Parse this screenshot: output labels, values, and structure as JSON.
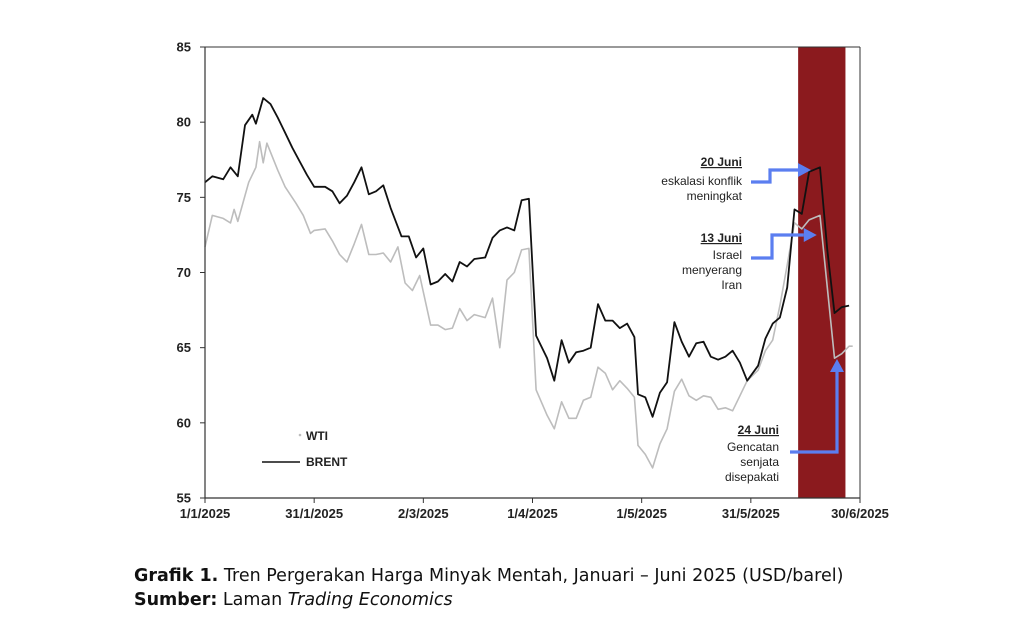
{
  "chart_data": {
    "type": "line",
    "ylim": [
      55,
      85
    ],
    "yticks": [
      55,
      60,
      65,
      70,
      75,
      80,
      85
    ],
    "x_tick_labels": [
      "1/1/2025",
      "31/1/2025",
      "2/3/2025",
      "1/4/2025",
      "1/5/2025",
      "31/5/2025",
      "30/6/2025"
    ],
    "x_range": [
      "2025-01-01",
      "2025-06-30"
    ],
    "grid": false,
    "legend_position": "bottom-left",
    "shaded_period": {
      "start": "2025-06-13",
      "end": "2025-06-26",
      "color": "#8b1a1e"
    },
    "series": [
      {
        "name": "WTI",
        "color": "#bdbdbd",
        "points": [
          [
            "2025-01-01",
            71.7
          ],
          [
            "2025-01-03",
            73.8
          ],
          [
            "2025-01-06",
            73.6
          ],
          [
            "2025-01-08",
            73.3
          ],
          [
            "2025-01-09",
            74.2
          ],
          [
            "2025-01-10",
            73.4
          ],
          [
            "2025-01-13",
            76.0
          ],
          [
            "2025-01-15",
            77.0
          ],
          [
            "2025-01-16",
            78.7
          ],
          [
            "2025-01-17",
            77.3
          ],
          [
            "2025-01-18",
            78.6
          ],
          [
            "2025-01-21",
            76.8
          ],
          [
            "2025-01-23",
            75.7
          ],
          [
            "2025-01-26",
            74.6
          ],
          [
            "2025-01-28",
            73.8
          ],
          [
            "2025-01-30",
            72.6
          ],
          [
            "2025-01-31",
            72.8
          ],
          [
            "2025-02-03",
            72.9
          ],
          [
            "2025-02-05",
            72.1
          ],
          [
            "2025-02-07",
            71.2
          ],
          [
            "2025-02-09",
            70.7
          ],
          [
            "2025-02-11",
            71.9
          ],
          [
            "2025-02-13",
            73.2
          ],
          [
            "2025-02-15",
            71.2
          ],
          [
            "2025-02-17",
            71.2
          ],
          [
            "2025-02-19",
            71.3
          ],
          [
            "2025-02-21",
            70.7
          ],
          [
            "2025-02-23",
            71.7
          ],
          [
            "2025-02-25",
            69.3
          ],
          [
            "2025-02-27",
            68.8
          ],
          [
            "2025-03-01",
            69.8
          ],
          [
            "2025-03-04",
            66.5
          ],
          [
            "2025-03-06",
            66.5
          ],
          [
            "2025-03-08",
            66.2
          ],
          [
            "2025-03-10",
            66.3
          ],
          [
            "2025-03-12",
            67.6
          ],
          [
            "2025-03-14",
            66.8
          ],
          [
            "2025-03-16",
            67.2
          ],
          [
            "2025-03-19",
            67.0
          ],
          [
            "2025-03-21",
            68.3
          ],
          [
            "2025-03-23",
            65.0
          ],
          [
            "2025-03-25",
            69.5
          ],
          [
            "2025-03-27",
            70.0
          ],
          [
            "2025-03-29",
            71.5
          ],
          [
            "2025-03-31",
            71.6
          ],
          [
            "2025-04-02",
            62.2
          ],
          [
            "2025-04-05",
            60.5
          ],
          [
            "2025-04-07",
            59.6
          ],
          [
            "2025-04-09",
            61.4
          ],
          [
            "2025-04-11",
            60.3
          ],
          [
            "2025-04-13",
            60.3
          ],
          [
            "2025-04-15",
            61.5
          ],
          [
            "2025-04-17",
            61.7
          ],
          [
            "2025-04-19",
            63.7
          ],
          [
            "2025-04-21",
            63.3
          ],
          [
            "2025-04-23",
            62.2
          ],
          [
            "2025-04-25",
            62.8
          ],
          [
            "2025-04-27",
            62.3
          ],
          [
            "2025-04-29",
            61.7
          ],
          [
            "2025-04-30",
            58.5
          ],
          [
            "2025-05-02",
            57.9
          ],
          [
            "2025-05-04",
            57.0
          ],
          [
            "2025-05-06",
            58.6
          ],
          [
            "2025-05-08",
            59.6
          ],
          [
            "2025-05-10",
            62.1
          ],
          [
            "2025-05-12",
            62.9
          ],
          [
            "2025-05-14",
            61.8
          ],
          [
            "2025-05-16",
            61.5
          ],
          [
            "2025-05-18",
            61.8
          ],
          [
            "2025-05-20",
            61.7
          ],
          [
            "2025-05-22",
            60.9
          ],
          [
            "2025-05-24",
            61.0
          ],
          [
            "2025-05-26",
            60.8
          ],
          [
            "2025-05-28",
            61.8
          ],
          [
            "2025-05-30",
            62.8
          ],
          [
            "2025-06-02",
            63.5
          ],
          [
            "2025-06-04",
            64.8
          ],
          [
            "2025-06-06",
            65.5
          ],
          [
            "2025-06-08",
            67.8
          ],
          [
            "2025-06-10",
            70.5
          ],
          [
            "2025-06-12",
            73.3
          ],
          [
            "2025-06-14",
            72.9
          ],
          [
            "2025-06-16",
            73.5
          ],
          [
            "2025-06-19",
            73.8
          ],
          [
            "2025-06-21",
            69.0
          ],
          [
            "2025-06-23",
            64.3
          ],
          [
            "2025-06-25",
            64.6
          ],
          [
            "2025-06-27",
            65.1
          ],
          [
            "2025-06-28",
            65.1
          ]
        ]
      },
      {
        "name": "BRENT",
        "color": "#111111",
        "points": [
          [
            "2025-01-01",
            76.0
          ],
          [
            "2025-01-03",
            76.4
          ],
          [
            "2025-01-06",
            76.2
          ],
          [
            "2025-01-08",
            77.0
          ],
          [
            "2025-01-10",
            76.4
          ],
          [
            "2025-01-12",
            79.8
          ],
          [
            "2025-01-14",
            80.5
          ],
          [
            "2025-01-15",
            79.9
          ],
          [
            "2025-01-17",
            81.6
          ],
          [
            "2025-01-19",
            81.2
          ],
          [
            "2025-01-21",
            80.3
          ],
          [
            "2025-01-23",
            79.3
          ],
          [
            "2025-01-25",
            78.3
          ],
          [
            "2025-01-27",
            77.4
          ],
          [
            "2025-01-29",
            76.5
          ],
          [
            "2025-01-31",
            75.7
          ],
          [
            "2025-02-03",
            75.7
          ],
          [
            "2025-02-05",
            75.4
          ],
          [
            "2025-02-07",
            74.6
          ],
          [
            "2025-02-09",
            75.1
          ],
          [
            "2025-02-11",
            76.0
          ],
          [
            "2025-02-13",
            77.0
          ],
          [
            "2025-02-15",
            75.2
          ],
          [
            "2025-02-17",
            75.4
          ],
          [
            "2025-02-19",
            75.8
          ],
          [
            "2025-02-21",
            74.3
          ],
          [
            "2025-02-24",
            72.4
          ],
          [
            "2025-02-26",
            72.4
          ],
          [
            "2025-02-28",
            71.0
          ],
          [
            "2025-03-02",
            71.6
          ],
          [
            "2025-03-04",
            69.2
          ],
          [
            "2025-03-06",
            69.4
          ],
          [
            "2025-03-08",
            69.9
          ],
          [
            "2025-03-10",
            69.4
          ],
          [
            "2025-03-12",
            70.7
          ],
          [
            "2025-03-14",
            70.4
          ],
          [
            "2025-03-16",
            70.9
          ],
          [
            "2025-03-19",
            71.0
          ],
          [
            "2025-03-21",
            72.3
          ],
          [
            "2025-03-23",
            72.8
          ],
          [
            "2025-03-25",
            73.0
          ],
          [
            "2025-03-27",
            72.8
          ],
          [
            "2025-03-29",
            74.8
          ],
          [
            "2025-03-31",
            74.9
          ],
          [
            "2025-04-02",
            65.8
          ],
          [
            "2025-04-05",
            64.3
          ],
          [
            "2025-04-07",
            62.8
          ],
          [
            "2025-04-09",
            65.5
          ],
          [
            "2025-04-11",
            64.0
          ],
          [
            "2025-04-13",
            64.7
          ],
          [
            "2025-04-15",
            64.8
          ],
          [
            "2025-04-17",
            65.0
          ],
          [
            "2025-04-19",
            67.9
          ],
          [
            "2025-04-21",
            66.8
          ],
          [
            "2025-04-23",
            66.8
          ],
          [
            "2025-04-25",
            66.3
          ],
          [
            "2025-04-27",
            66.6
          ],
          [
            "2025-04-29",
            65.7
          ],
          [
            "2025-04-30",
            61.9
          ],
          [
            "2025-05-02",
            61.7
          ],
          [
            "2025-05-04",
            60.4
          ],
          [
            "2025-05-06",
            62.0
          ],
          [
            "2025-05-08",
            62.7
          ],
          [
            "2025-05-10",
            66.7
          ],
          [
            "2025-05-12",
            65.4
          ],
          [
            "2025-05-14",
            64.4
          ],
          [
            "2025-05-16",
            65.3
          ],
          [
            "2025-05-18",
            65.4
          ],
          [
            "2025-05-20",
            64.4
          ],
          [
            "2025-05-22",
            64.2
          ],
          [
            "2025-05-24",
            64.4
          ],
          [
            "2025-05-26",
            64.8
          ],
          [
            "2025-05-28",
            64.0
          ],
          [
            "2025-05-30",
            62.8
          ],
          [
            "2025-06-02",
            63.8
          ],
          [
            "2025-06-04",
            65.6
          ],
          [
            "2025-06-06",
            66.6
          ],
          [
            "2025-06-08",
            67.0
          ],
          [
            "2025-06-10",
            69.0
          ],
          [
            "2025-06-12",
            74.2
          ],
          [
            "2025-06-14",
            73.9
          ],
          [
            "2025-06-16",
            76.7
          ],
          [
            "2025-06-19",
            77.0
          ],
          [
            "2025-06-21",
            71.5
          ],
          [
            "2025-06-23",
            67.3
          ],
          [
            "2025-06-25",
            67.7
          ],
          [
            "2025-06-27",
            67.8
          ]
        ]
      }
    ],
    "annotations": [
      {
        "title": "20 Juni",
        "lines": [
          "eskalasi konflik",
          "meningkat"
        ],
        "date": "2025-06-19",
        "value": 77.0
      },
      {
        "title": "13 Juni",
        "lines": [
          "Israel",
          "menyerang",
          "Iran"
        ],
        "date": "2025-06-14",
        "value": 73.3
      },
      {
        "title": "24 Juni",
        "lines": [
          "Gencatan",
          "senjata",
          "disepakati"
        ],
        "date": "2025-06-24",
        "value": 64.3
      }
    ]
  },
  "caption": {
    "line1_label": "Grafik 1.",
    "line1_text": " Tren Pergerakan Harga Minyak Mentah, Januari – Juni 2025 (USD/barel)",
    "line2_label": "Sumber:",
    "line2_text": " Laman ",
    "line2_italic": "Trading Economics"
  }
}
